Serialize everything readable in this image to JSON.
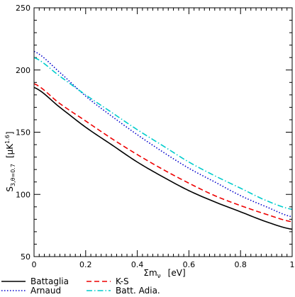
{
  "chart_data": {
    "type": "line",
    "xlabel": "Σm",
    "xlabel_sub": "ν",
    "xlabel_unit": "[eV]",
    "ylabel": "S",
    "ylabel_sub": "3,θ=0.7",
    "ylabel_unit_open": "[μK",
    "ylabel_unit_sup": "1.6",
    "ylabel_unit_close": "]",
    "xlim": [
      0,
      1
    ],
    "ylim": [
      50,
      250
    ],
    "x_ticks": [
      "0",
      "0.2",
      "0.4",
      "0.6",
      "0.8",
      "1"
    ],
    "y_ticks": [
      "50",
      "100",
      "150",
      "200",
      "250"
    ],
    "grid": false,
    "legend_placement": "below",
    "x": [
      0,
      0.1,
      0.2,
      0.3,
      0.4,
      0.5,
      0.6,
      0.7,
      0.8,
      0.9,
      1.0
    ],
    "series": [
      {
        "name": "Battaglia",
        "color": "#000000",
        "dash": "solid",
        "values": [
          186,
          170,
          154,
          140,
          126,
          114,
          103,
          94,
          86,
          78,
          72
        ]
      },
      {
        "name": "Arnaud",
        "color": "#0000cc",
        "dash": "dotted",
        "values": [
          215,
          198,
          179,
          163,
          148,
          134,
          121,
          110,
          99,
          90,
          82
        ]
      },
      {
        "name": "K-S",
        "color": "#ee0000",
        "dash": "dashed",
        "values": [
          189,
          173,
          159,
          145,
          132,
          120,
          109,
          99,
          91,
          84,
          78
        ]
      },
      {
        "name": "Batt. Adia.",
        "color": "#00cccc",
        "dash": "dashdot",
        "values": [
          210,
          195,
          180,
          166,
          152,
          139,
          126,
          115,
          105,
          95,
          88
        ]
      }
    ]
  }
}
